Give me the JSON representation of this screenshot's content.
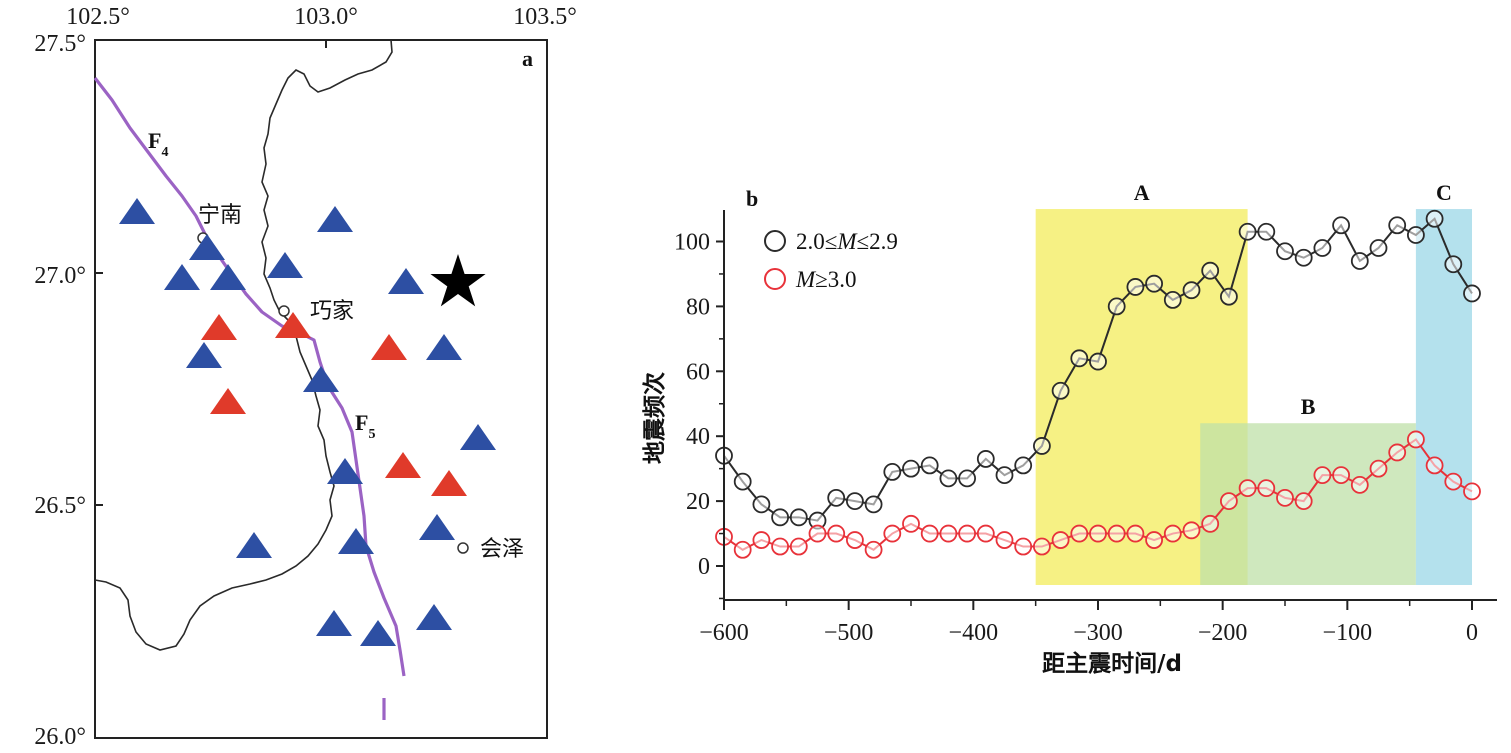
{
  "map": {
    "panel_label": "a",
    "lon_ticks": [
      "102.5°",
      "103.0°",
      "103.5°"
    ],
    "lat_ticks": [
      "27.5°",
      "27.0°",
      "26.5°",
      "26.0°"
    ],
    "places": {
      "ningnan": "宁南",
      "qiaojia": "巧家",
      "huize": "会泽"
    },
    "faults": {
      "f4": "F",
      "f4_sub": "4",
      "f5": "F",
      "f5_sub": "5"
    },
    "colors": {
      "blue_station": "#2d4fa3",
      "red_station": "#e03a2a",
      "fault": "#9b63c4",
      "border": "#333333"
    }
  },
  "chart_data": {
    "type": "line",
    "panel_label": "b",
    "xlabel": "距主震时间/d",
    "ylabel": "地震频次",
    "xlim": [
      -600,
      0
    ],
    "ylim": [
      -10,
      110
    ],
    "x_ticks": [
      "−600",
      "−500",
      "−400",
      "−300",
      "−200",
      "−100",
      "0"
    ],
    "y_ticks": [
      "0",
      "20",
      "40",
      "60",
      "80",
      "100"
    ],
    "regions": [
      {
        "label": "A",
        "x0": -350,
        "x1": -180,
        "y1": 110,
        "color": "#f5ef6e"
      },
      {
        "label": "B",
        "x0": -218,
        "x1": -45,
        "y1": 44,
        "color": "#bfe0a8"
      },
      {
        "label": "C",
        "x0": -45,
        "x1": 0,
        "y1": 110,
        "color": "#a7dcea"
      }
    ],
    "series": [
      {
        "name_prefix": "2.0≤",
        "name_var": "M",
        "name_suffix": "≤2.9",
        "color": "#2b2b2b",
        "x": [
          -600,
          -585,
          -570,
          -555,
          -540,
          -525,
          -510,
          -495,
          -480,
          -465,
          -450,
          -435,
          -420,
          -405,
          -390,
          -375,
          -360,
          -345,
          -330,
          -315,
          -300,
          -285,
          -270,
          -255,
          -240,
          -225,
          -210,
          -195,
          -180,
          -165,
          -150,
          -135,
          -120,
          -105,
          -90,
          -75,
          -60,
          -45,
          -30,
          -15,
          0
        ],
        "values": [
          34,
          26,
          19,
          15,
          15,
          14,
          21,
          20,
          19,
          29,
          30,
          31,
          27,
          27,
          33,
          28,
          31,
          37,
          54,
          64,
          63,
          80,
          86,
          87,
          82,
          85,
          91,
          83,
          103,
          103,
          97,
          95,
          98,
          105,
          94,
          98,
          105,
          102,
          107,
          93,
          84
        ]
      },
      {
        "name_prefix": "",
        "name_var": "M",
        "name_suffix": "≥3.0",
        "color": "#e8323a",
        "x": [
          -600,
          -585,
          -570,
          -555,
          -540,
          -525,
          -510,
          -495,
          -480,
          -465,
          -450,
          -435,
          -420,
          -405,
          -390,
          -375,
          -360,
          -345,
          -330,
          -315,
          -300,
          -285,
          -270,
          -255,
          -240,
          -225,
          -210,
          -195,
          -180,
          -165,
          -150,
          -135,
          -120,
          -105,
          -90,
          -75,
          -60,
          -45,
          -30,
          -15,
          0
        ],
        "values": [
          9,
          5,
          8,
          6,
          6,
          10,
          10,
          8,
          5,
          10,
          13,
          10,
          10,
          10,
          10,
          8,
          6,
          6,
          8,
          10,
          10,
          10,
          10,
          8,
          10,
          11,
          13,
          20,
          24,
          24,
          21,
          20,
          28,
          28,
          25,
          30,
          35,
          39,
          31,
          26,
          23
        ]
      }
    ]
  }
}
